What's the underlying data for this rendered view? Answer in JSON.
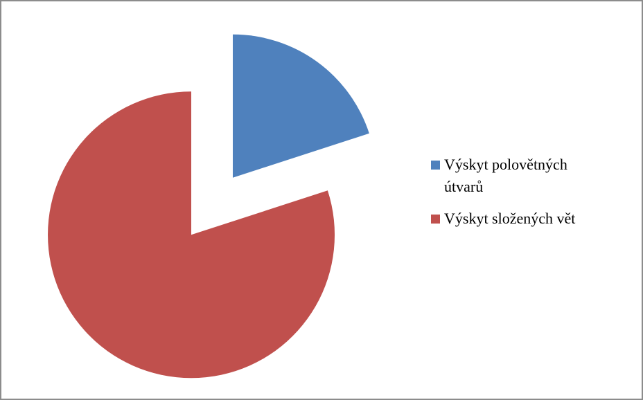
{
  "chart_data": {
    "type": "pie",
    "categories": [
      "Výskyt polovětných útvarů",
      "Výskyt složených vět"
    ],
    "values": [
      20,
      80
    ],
    "colors": [
      "#4f81bd",
      "#c0504d"
    ],
    "legend": "right"
  }
}
